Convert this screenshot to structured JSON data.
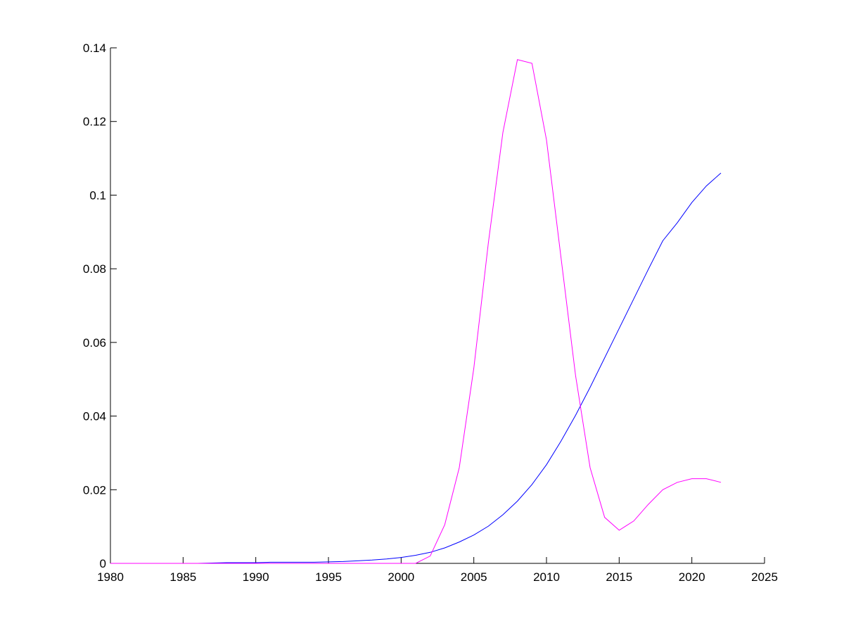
{
  "chart_data": {
    "type": "line",
    "x": [
      1980,
      1981,
      1982,
      1983,
      1984,
      1985,
      1986,
      1987,
      1988,
      1989,
      1990,
      1991,
      1992,
      1993,
      1994,
      1995,
      1996,
      1997,
      1998,
      1999,
      2000,
      2001,
      2002,
      2003,
      2004,
      2005,
      2006,
      2007,
      2008,
      2009,
      2010,
      2011,
      2012,
      2013,
      2014,
      2015,
      2016,
      2017,
      2018,
      2019,
      2020,
      2021,
      2022
    ],
    "series": [
      {
        "color": "#0000ff",
        "values": [
          0,
          0,
          0,
          0,
          0,
          0,
          0,
          0.0001,
          0.0002,
          0.0002,
          0.0002,
          0.0003,
          0.0003,
          0.0003,
          0.0003,
          0.0004,
          0.0005,
          0.0007,
          0.0009,
          0.0012,
          0.0016,
          0.0022,
          0.003,
          0.0042,
          0.0058,
          0.0077,
          0.0101,
          0.0132,
          0.0169,
          0.0214,
          0.0268,
          0.0332,
          0.0402,
          0.0478,
          0.0558,
          0.0638,
          0.0718,
          0.0798,
          0.0876,
          0.0925,
          0.098,
          0.1025,
          0.106
        ]
      },
      {
        "color": "#ff00ff",
        "values": [
          0,
          0,
          0,
          0,
          0,
          0,
          0,
          0,
          0,
          0,
          0,
          0,
          0,
          0,
          0,
          0,
          0,
          0,
          0,
          0,
          0,
          0,
          0.002,
          0.0105,
          0.026,
          0.053,
          0.087,
          0.117,
          0.1368,
          0.1358,
          0.115,
          0.083,
          0.051,
          0.026,
          0.0125,
          0.009,
          0.0115,
          0.016,
          0.02,
          0.022,
          0.023,
          0.023,
          0.022
        ]
      }
    ],
    "xlim": [
      1980,
      2025
    ],
    "xticks": [
      1980,
      1985,
      1990,
      1995,
      2000,
      2005,
      2010,
      2015,
      2020,
      2025
    ],
    "ylim": [
      0,
      0.14
    ],
    "yticks": [
      0,
      0.02,
      0.04,
      0.06,
      0.08,
      0.1,
      0.12,
      0.14
    ]
  }
}
